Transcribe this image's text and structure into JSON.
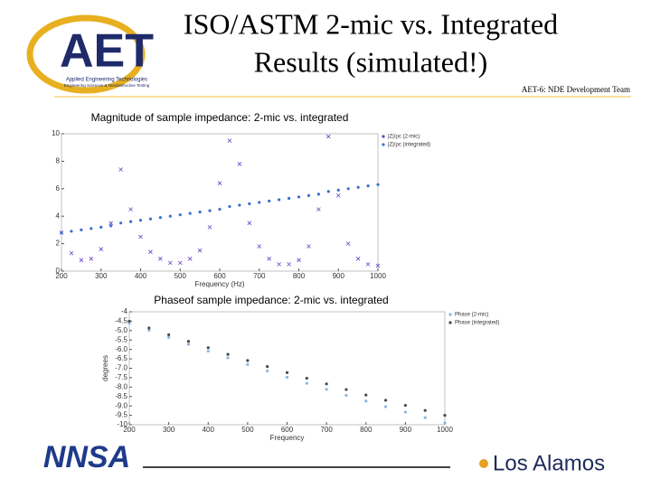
{
  "header": {
    "title_lines": [
      "ISO/ASTM 2-mic vs. Integrated",
      "Results (simulated!)"
    ],
    "team": "AET-6: NDE  Development Team",
    "logo": "AET",
    "logo_sub1": "Applied Engineering Technologies",
    "logo_sub2": "Engineering Sciences & Nondestructive Testing"
  },
  "footer": {
    "left_logo": "NNSA",
    "right_logo": "Los Alamos"
  },
  "chart_data": [
    {
      "type": "scatter",
      "title": "Magnitude of sample impedance:  2-mic vs. integrated",
      "xlabel": "Frequency (Hz)",
      "x": [
        200,
        225,
        250,
        275,
        300,
        325,
        350,
        375,
        400,
        425,
        450,
        475,
        500,
        525,
        550,
        575,
        600,
        625,
        650,
        675,
        700,
        725,
        750,
        775,
        800,
        825,
        850,
        875,
        900,
        925,
        950,
        975,
        1000
      ],
      "series": [
        {
          "name": "|Z|/ρc (2-mic)",
          "color": "#6a3fc8",
          "marker": "x",
          "values": [
            2.8,
            1.3,
            0.8,
            0.9,
            1.6,
            3.5,
            7.4,
            4.5,
            2.5,
            1.4,
            0.9,
            0.6,
            0.6,
            0.9,
            1.5,
            3.2,
            6.4,
            9.5,
            7.8,
            3.5,
            1.8,
            0.9,
            0.5,
            0.5,
            0.8,
            1.8,
            4.5,
            9.8,
            5.5,
            2.0,
            0.9,
            0.5,
            0.4
          ]
        },
        {
          "name": "|Z|/ρc (integrated)",
          "color": "#3a6fd0",
          "marker": "o",
          "values": [
            2.8,
            2.9,
            3.0,
            3.1,
            3.2,
            3.3,
            3.5,
            3.6,
            3.7,
            3.8,
            3.9,
            4.0,
            4.1,
            4.2,
            4.3,
            4.4,
            4.5,
            4.7,
            4.8,
            4.9,
            5.0,
            5.1,
            5.2,
            5.3,
            5.4,
            5.5,
            5.6,
            5.8,
            5.9,
            6.0,
            6.1,
            6.2,
            6.3
          ]
        }
      ],
      "xlim": [
        200,
        1000
      ],
      "xticks": [
        200,
        300,
        400,
        500,
        600,
        700,
        800,
        900,
        1000
      ],
      "ylim": [
        0,
        10
      ],
      "yticks": [
        0,
        2,
        4,
        6,
        8,
        10
      ],
      "legend": "right"
    },
    {
      "type": "scatter",
      "title": "Phaseof sample impedance:  2-mic vs. integrated",
      "xlabel": "Frequency",
      "ylabel": "degrees",
      "x": [
        200,
        250,
        300,
        350,
        400,
        450,
        500,
        550,
        600,
        650,
        700,
        750,
        800,
        850,
        900,
        950,
        1000
      ],
      "series": [
        {
          "name": "Phase (2-mic)",
          "color": "#8fb4dc",
          "marker": "o",
          "values": [
            -4.6,
            -4.98,
            -5.36,
            -5.73,
            -6.09,
            -6.45,
            -6.8,
            -7.14,
            -7.48,
            -7.8,
            -8.12,
            -8.44,
            -8.74,
            -9.04,
            -9.33,
            -9.62,
            -9.9
          ]
        },
        {
          "name": "Phase (integrated)",
          "color": "#404850",
          "marker": "o",
          "values": [
            -4.5,
            -4.86,
            -5.22,
            -5.57,
            -5.91,
            -6.26,
            -6.59,
            -6.91,
            -7.23,
            -7.53,
            -7.83,
            -8.13,
            -8.42,
            -8.7,
            -8.97,
            -9.24,
            -9.5
          ]
        }
      ],
      "xlim": [
        200,
        1000
      ],
      "xticks": [
        200,
        300,
        400,
        500,
        600,
        700,
        800,
        900,
        1000
      ],
      "ylim": [
        -10,
        -4
      ],
      "yticks": [
        -4,
        -4.5,
        {
          "value": -5,
          "label": "-5.0"
        },
        -5.5,
        {
          "value": -6,
          "label": "-6.0"
        },
        -6.5,
        {
          "value": -7,
          "label": "-7.0"
        },
        -7.5,
        {
          "value": -8,
          "label": "-8.0"
        },
        -8.5,
        {
          "value": -9,
          "label": "-9.0"
        },
        -9.5,
        -10
      ],
      "legend": "right"
    }
  ]
}
